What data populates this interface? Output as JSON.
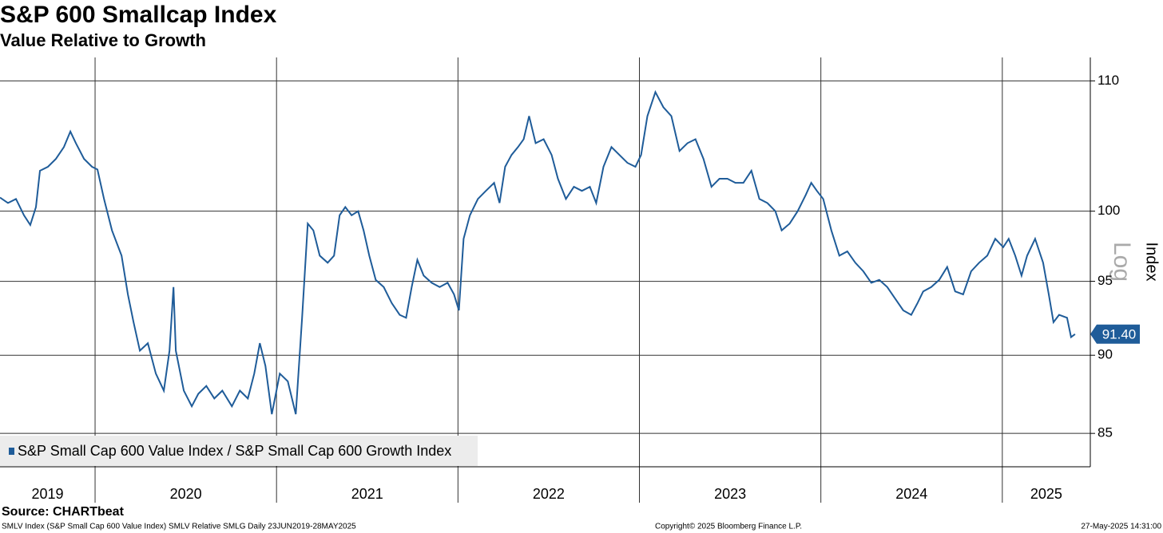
{
  "chart_data": {
    "type": "line",
    "title": "S&P 600 Smallcap Index",
    "subtitle": "Value Relative to Growth",
    "y_label": "Index",
    "scale_label": "Log",
    "log_scale": true,
    "grid": true,
    "legend_position": "lower-left",
    "source": "Source: CHARTbeat",
    "footer_left": "SMLV Index (S&P Small Cap 600 Value Index) SMLV Relative SMLG  Daily 23JUN2019-28MAY2025",
    "footer_center": "Copyright© 2025 Bloomberg Finance L.P.",
    "footer_right": "27-May-2025 14:31:00",
    "xlim": [
      2019.476,
      2025.485
    ],
    "xticks": [
      2019,
      2020,
      2021,
      2022,
      2023,
      2024,
      2025
    ],
    "ylim": [
      82.95,
      111.9
    ],
    "yticks": [
      85,
      90,
      95,
      100,
      110
    ],
    "last_value": {
      "value": 91.4,
      "label": "91.40"
    },
    "x": [
      2019.476,
      2019.52,
      2019.564,
      2019.608,
      2019.643,
      2019.674,
      2019.696,
      2019.74,
      2019.784,
      2019.828,
      2019.864,
      2019.894,
      2019.939,
      2019.983,
      2020.013,
      2020.049,
      2020.093,
      2020.146,
      2020.181,
      2020.212,
      2020.247,
      2020.291,
      2020.335,
      2020.379,
      2020.41,
      2020.432,
      2020.445,
      2020.489,
      2020.533,
      2020.569,
      2020.613,
      2020.657,
      2020.701,
      2020.754,
      2020.798,
      2020.842,
      2020.877,
      2020.908,
      2020.939,
      2020.974,
      2021.018,
      2021.062,
      2021.106,
      2021.141,
      2021.172,
      2021.203,
      2021.238,
      2021.282,
      2021.317,
      2021.348,
      2021.379,
      2021.414,
      2021.45,
      2021.48,
      2021.511,
      2021.547,
      2021.591,
      2021.635,
      2021.679,
      2021.714,
      2021.745,
      2021.776,
      2021.811,
      2021.855,
      2021.899,
      2021.943,
      2021.978,
      2022.005,
      2022.031,
      2022.066,
      2022.11,
      2022.154,
      2022.199,
      2022.229,
      2022.26,
      2022.295,
      2022.331,
      2022.362,
      2022.392,
      2022.428,
      2022.472,
      2022.516,
      2022.551,
      2022.595,
      2022.639,
      2022.683,
      2022.727,
      2022.762,
      2022.802,
      2022.846,
      2022.89,
      2022.934,
      2022.978,
      2023.009,
      2023.044,
      2023.088,
      2023.132,
      2023.176,
      2023.221,
      2023.265,
      2023.309,
      2023.353,
      2023.397,
      2023.441,
      2023.485,
      2023.529,
      2023.573,
      2023.617,
      2023.661,
      2023.705,
      2023.749,
      2023.784,
      2023.828,
      2023.872,
      2023.917,
      2023.947,
      2023.978,
      2024.013,
      2024.058,
      2024.102,
      2024.146,
      2024.19,
      2024.234,
      2024.278,
      2024.322,
      2024.366,
      2024.41,
      2024.454,
      2024.498,
      2024.533,
      2024.564,
      2024.608,
      2024.652,
      2024.696,
      2024.74,
      2024.784,
      2024.828,
      2024.872,
      2024.917,
      2024.961,
      2025.005,
      2025.035,
      2025.071,
      2025.106,
      2025.137,
      2025.181,
      2025.225,
      2025.256,
      2025.282,
      2025.313,
      2025.357,
      2025.379,
      2025.401
    ],
    "series": [
      {
        "name": "S&P Small Cap 600 Value Index / S&P Small Cap 600 Growth Index",
        "color": "#1f5c99",
        "values": [
          101.0,
          100.6,
          100.9,
          99.7,
          99.0,
          100.3,
          103.0,
          103.3,
          103.9,
          104.8,
          106.0,
          105.1,
          103.9,
          103.3,
          103.1,
          100.9,
          98.6,
          96.8,
          94.1,
          92.2,
          90.3,
          90.8,
          88.8,
          87.7,
          90.3,
          94.6,
          90.3,
          87.7,
          86.7,
          87.5,
          88.0,
          87.2,
          87.7,
          86.7,
          87.7,
          87.2,
          88.8,
          90.8,
          89.3,
          86.2,
          88.8,
          88.3,
          86.2,
          92.5,
          99.1,
          98.6,
          96.8,
          96.3,
          96.8,
          99.7,
          100.3,
          99.7,
          100.0,
          98.6,
          96.8,
          95.1,
          94.6,
          93.5,
          92.7,
          92.5,
          94.6,
          96.5,
          95.4,
          94.9,
          94.6,
          94.9,
          94.1,
          93.0,
          98.0,
          99.7,
          100.9,
          101.5,
          102.1,
          100.6,
          103.3,
          104.2,
          104.8,
          105.4,
          107.2,
          105.1,
          105.4,
          104.2,
          102.4,
          100.9,
          101.8,
          101.5,
          101.8,
          100.6,
          103.3,
          104.8,
          104.2,
          103.6,
          103.3,
          104.2,
          107.2,
          109.1,
          107.9,
          107.2,
          104.5,
          105.1,
          105.4,
          103.9,
          101.8,
          102.4,
          102.4,
          102.1,
          102.1,
          103.0,
          100.9,
          100.6,
          100.0,
          98.6,
          99.1,
          100.0,
          101.2,
          102.1,
          101.5,
          100.9,
          98.6,
          96.8,
          97.1,
          96.3,
          95.7,
          94.9,
          95.1,
          94.6,
          93.8,
          93.0,
          92.7,
          93.5,
          94.3,
          94.6,
          95.1,
          96.0,
          94.3,
          94.1,
          95.7,
          96.3,
          96.8,
          98.0,
          97.4,
          98.0,
          96.8,
          95.4,
          96.8,
          98.0,
          96.3,
          94.1,
          92.2,
          92.7,
          92.5,
          91.2,
          91.4
        ]
      }
    ]
  }
}
